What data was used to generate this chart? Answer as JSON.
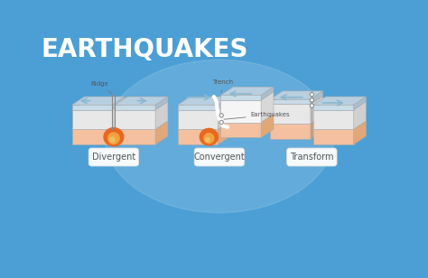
{
  "title": "EARTHQUAKES",
  "title_color": "#ffffff",
  "title_fontsize": 20,
  "background_color": "#4b9fd5",
  "labels": [
    "Divergent",
    "Convergent",
    "Transform"
  ],
  "plate_white_top": "#f0f0f0",
  "plate_white_face": "#e8e8e8",
  "plate_white_side": "#d0d0d0",
  "plate_blue_top": "#b8cfe0",
  "plate_blue_face": "#c8dce8",
  "plate_blue_side": "#a8bece",
  "plate_orange_top": "#f5c8a0",
  "plate_orange_face": "#f5c0a0",
  "plate_orange_side": "#e0a878",
  "lava_outer": "#e86820",
  "lava_inner": "#f5a040",
  "lava_bright": "#f0c060",
  "arrow_color": "#8ab8d0",
  "label_box_color": "#ffffff",
  "label_text_color": "#555555",
  "annotation_color": "#555555",
  "eq_dot_color": "#888888"
}
